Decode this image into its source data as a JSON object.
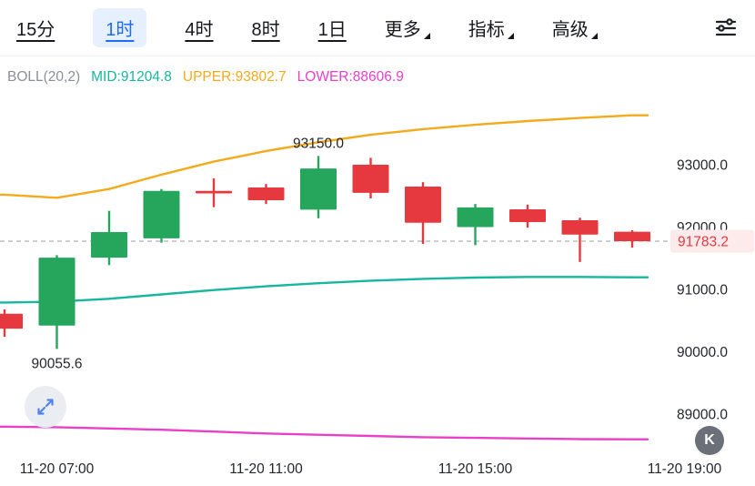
{
  "toolbar": {
    "timeframes": [
      {
        "label": "15分",
        "active": false
      },
      {
        "label": "1时",
        "active": true
      },
      {
        "label": "4时",
        "active": false
      },
      {
        "label": "8时",
        "active": false
      },
      {
        "label": "1日",
        "active": false
      }
    ],
    "menus": [
      {
        "label": "更多"
      },
      {
        "label": "指标"
      },
      {
        "label": "高级"
      }
    ],
    "accent_color": "#1f6df2",
    "accent_bg": "#e7f0fe"
  },
  "indicator": {
    "name": "BOLL(20,2)",
    "mid_label": "MID:91204.8",
    "upper_label": "UPPER:93802.7",
    "lower_label": "LOWER:88606.9"
  },
  "badges": {
    "k_label": "K"
  },
  "chart_data": {
    "type": "candlestick",
    "interval": "1时",
    "y_axis": {
      "ticks": [
        93000.0,
        92000.0,
        91000.0,
        90000.0,
        89000.0
      ],
      "range": [
        88500,
        93900
      ]
    },
    "x_axis": {
      "ticks": [
        "11-20 07:00",
        "11-20 11:00",
        "11-20 15:00",
        "11-20 19:00"
      ],
      "tick_candle_index": [
        1,
        5,
        9,
        13
      ]
    },
    "current_price": 91783.2,
    "annotations": {
      "high_label": "93150.0",
      "high_value": 93150.0,
      "low_label": "90055.6",
      "low_value": 90055.6
    },
    "colors": {
      "up": "#26a65d",
      "down": "#e5383f",
      "upper_band": "#f3aa1c",
      "middle_band": "#16b79e",
      "lower_band": "#e840c8",
      "price_line": "#9aa0a6",
      "price_tag_bg": "#fdeaea",
      "price_tag_text": "#e5383f",
      "axis_text": "#23262b"
    },
    "candles": [
      {
        "time": "06:00",
        "open": 90620,
        "high": 90690,
        "low": 90250,
        "close": 90380
      },
      {
        "time": "07:00",
        "open": 90430,
        "high": 91560,
        "low": 90055.6,
        "close": 91520
      },
      {
        "time": "08:00",
        "open": 91520,
        "high": 92270,
        "low": 91400,
        "close": 91930
      },
      {
        "time": "09:00",
        "open": 91830,
        "high": 92620,
        "low": 91760,
        "close": 92590
      },
      {
        "time": "10:00",
        "open": 92590,
        "high": 92790,
        "low": 92330,
        "close": 92550
      },
      {
        "time": "11:00",
        "open": 92645,
        "high": 92700,
        "low": 92380,
        "close": 92440
      },
      {
        "time": "12:00",
        "open": 92290,
        "high": 93150,
        "low": 92150,
        "close": 92950
      },
      {
        "time": "13:00",
        "open": 93010,
        "high": 93120,
        "low": 92470,
        "close": 92560
      },
      {
        "time": "14:00",
        "open": 92660,
        "high": 92730,
        "low": 91740,
        "close": 92080
      },
      {
        "time": "15:00",
        "open": 92010,
        "high": 92380,
        "low": 91720,
        "close": 92325
      },
      {
        "time": "16:00",
        "open": 92295,
        "high": 92370,
        "low": 92000,
        "close": 92090
      },
      {
        "time": "17:00",
        "open": 92120,
        "high": 92160,
        "low": 91450,
        "close": 91890
      },
      {
        "time": "18:00",
        "open": 91935,
        "high": 91960,
        "low": 91680,
        "close": 91783.2
      }
    ],
    "bollinger": {
      "upper": [
        92530,
        92480,
        92620,
        92850,
        93060,
        93230,
        93370,
        93490,
        93580,
        93650,
        93710,
        93760,
        93802.7
      ],
      "middle": [
        90800,
        90815,
        90860,
        90930,
        91000,
        91060,
        91110,
        91150,
        91180,
        91200,
        91210,
        91210,
        91204.8
      ],
      "lower": [
        88810,
        88800,
        88780,
        88760,
        88730,
        88700,
        88680,
        88660,
        88640,
        88630,
        88620,
        88610,
        88606.9
      ]
    }
  }
}
